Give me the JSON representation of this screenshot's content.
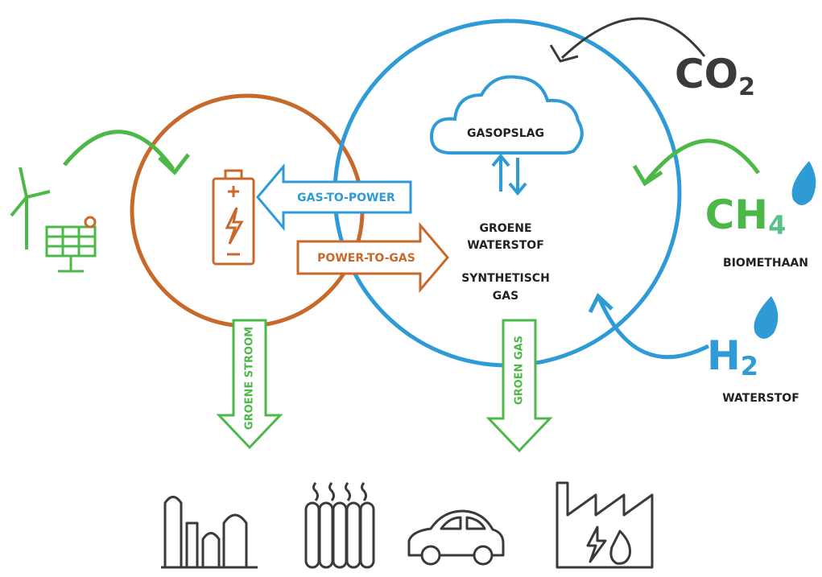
{
  "diagram": {
    "co2": {
      "base": "CO",
      "sub": "2"
    },
    "gasopslag": "GASOPSLAG",
    "gas_to_power": "GAS-TO-POWER",
    "power_to_gas": "POWER-TO-GAS",
    "groene_waterstof": [
      "GROENE",
      "WATERSTOF"
    ],
    "synthetisch_gas": [
      "SYNTHETISCH",
      "GAS"
    ],
    "ch4": {
      "base": "CH",
      "sub": "4"
    },
    "biomethaan": "BIOMETHAAN",
    "h2": {
      "base": "H",
      "sub": "2"
    },
    "waterstof": "WATERSTOF",
    "groene_stroom": "GROENE STROOM",
    "groen_gas": "GROEN GAS"
  }
}
